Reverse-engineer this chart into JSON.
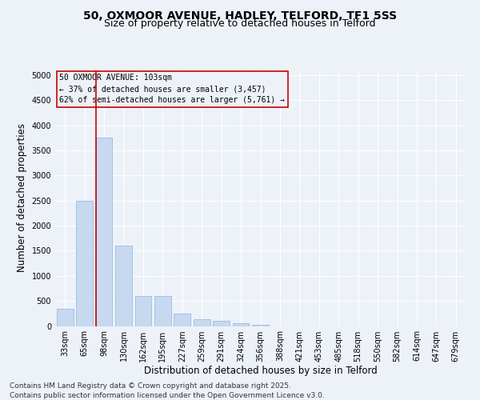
{
  "title_line1": "50, OXMOOR AVENUE, HADLEY, TELFORD, TF1 5SS",
  "title_line2": "Size of property relative to detached houses in Telford",
  "xlabel": "Distribution of detached houses by size in Telford",
  "ylabel": "Number of detached properties",
  "categories": [
    "33sqm",
    "65sqm",
    "98sqm",
    "130sqm",
    "162sqm",
    "195sqm",
    "227sqm",
    "259sqm",
    "291sqm",
    "324sqm",
    "356sqm",
    "388sqm",
    "421sqm",
    "453sqm",
    "485sqm",
    "518sqm",
    "550sqm",
    "582sqm",
    "614sqm",
    "647sqm",
    "679sqm"
  ],
  "values": [
    350,
    2500,
    3750,
    1600,
    600,
    600,
    250,
    130,
    100,
    50,
    20,
    0,
    0,
    0,
    0,
    0,
    0,
    0,
    0,
    0,
    0
  ],
  "bar_color": "#c6d9f0",
  "bar_edgecolor": "#8db4d9",
  "vline_color": "#cc0000",
  "vline_x": 1.575,
  "ylim": [
    0,
    5100
  ],
  "yticks": [
    0,
    500,
    1000,
    1500,
    2000,
    2500,
    3000,
    3500,
    4000,
    4500,
    5000
  ],
  "annotation_title": "50 OXMOOR AVENUE: 103sqm",
  "annotation_line2": "← 37% of detached houses are smaller (3,457)",
  "annotation_line3": "62% of semi-detached houses are larger (5,761) →",
  "annotation_box_color": "#cc0000",
  "footer_line1": "Contains HM Land Registry data © Crown copyright and database right 2025.",
  "footer_line2": "Contains public sector information licensed under the Open Government Licence v3.0.",
  "bg_color": "#edf2f9",
  "grid_color": "#ffffff",
  "title_fontsize": 10,
  "subtitle_fontsize": 9,
  "axis_label_fontsize": 8.5,
  "tick_fontsize": 7,
  "annot_fontsize": 7,
  "footer_fontsize": 6.5
}
